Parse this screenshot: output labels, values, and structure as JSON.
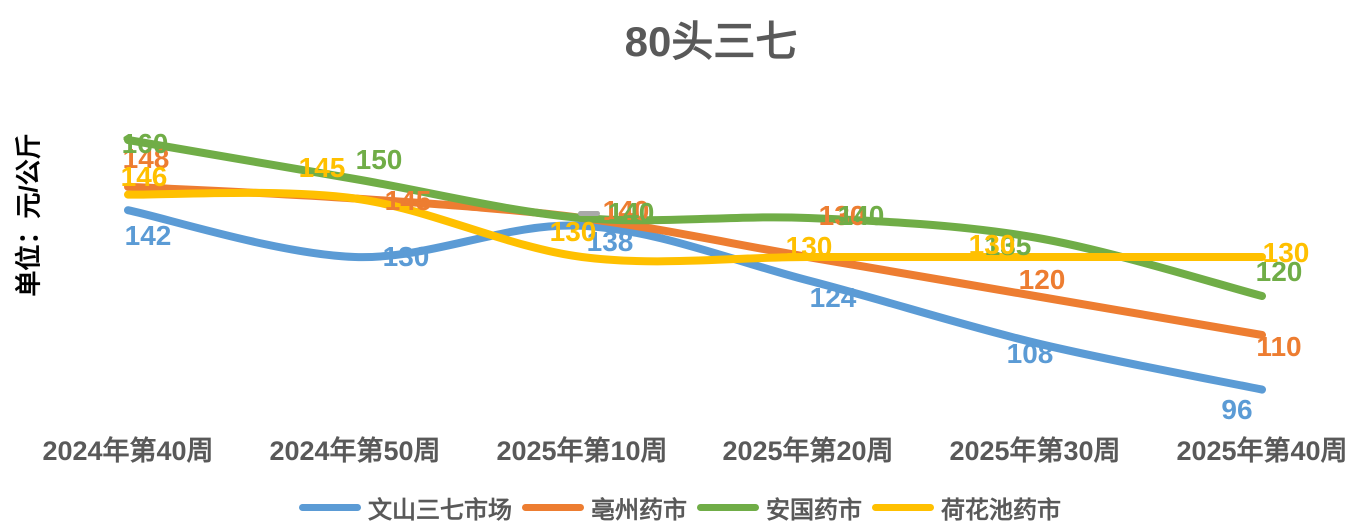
{
  "title": "80头三七",
  "y_axis_label": "单位：元/公斤",
  "chart_data": {
    "type": "line",
    "smooth": true,
    "grid": false,
    "data_labels": true,
    "legend_position": "bottom",
    "categories": [
      "2024年第40周",
      "2024年第50周",
      "2025年第10周",
      "2025年第20周",
      "2025年第30周",
      "2025年第40周"
    ],
    "series": [
      {
        "name": "文山三七市场",
        "color": "#5B9BD5",
        "values": [
          142,
          130,
          138,
          124,
          108,
          96
        ]
      },
      {
        "name": "亳州药市",
        "color": "#ED7D31",
        "values": [
          148,
          145,
          140,
          130,
          120,
          110
        ]
      },
      {
        "name": "安国药市",
        "color": "#70AD47",
        "values": [
          160,
          150,
          140,
          140,
          135,
          120
        ]
      },
      {
        "name": "荷花池药市",
        "color": "#FFC000",
        "values": [
          146,
          145,
          130,
          130,
          130,
          130
        ]
      }
    ],
    "ylim": [
      90,
      170
    ],
    "xlabel": "",
    "ylabel": "单位：元/公斤",
    "text_colors": {
      "title": "#595959",
      "axis": "#595959",
      "y_title": "#000000"
    }
  }
}
